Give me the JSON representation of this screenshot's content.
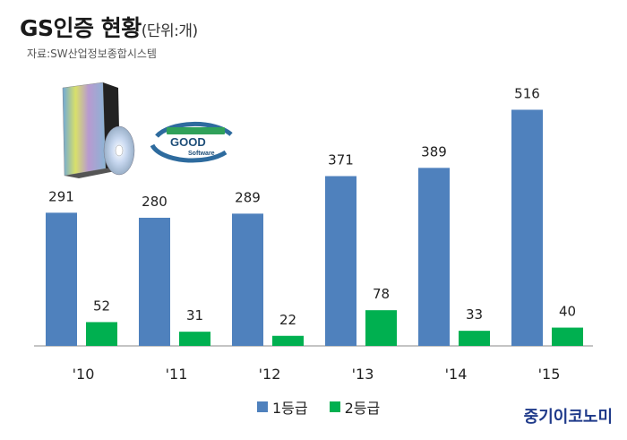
{
  "header": {
    "title": "GS인증 현황",
    "unit": "(단위:개)",
    "source": "자료:SW산업정보종합시스템"
  },
  "logo": {
    "line1": "GOOD",
    "line2": "Software"
  },
  "brand": "중기이코노미",
  "colors": {
    "grade1": "#4f81bd",
    "grade2": "#00b050",
    "axis": "#888888"
  },
  "chart_data": {
    "type": "bar",
    "categories": [
      "'10",
      "'11",
      "'12",
      "'13",
      "'14",
      "'15"
    ],
    "series": [
      {
        "name": "1등급",
        "values": [
          291,
          280,
          289,
          371,
          389,
          516
        ]
      },
      {
        "name": "2등급",
        "values": [
          52,
          31,
          22,
          78,
          33,
          40
        ]
      }
    ],
    "title": "GS인증 현황",
    "ylim": [
      0,
      560
    ],
    "grid": false,
    "legend": "bottom"
  }
}
